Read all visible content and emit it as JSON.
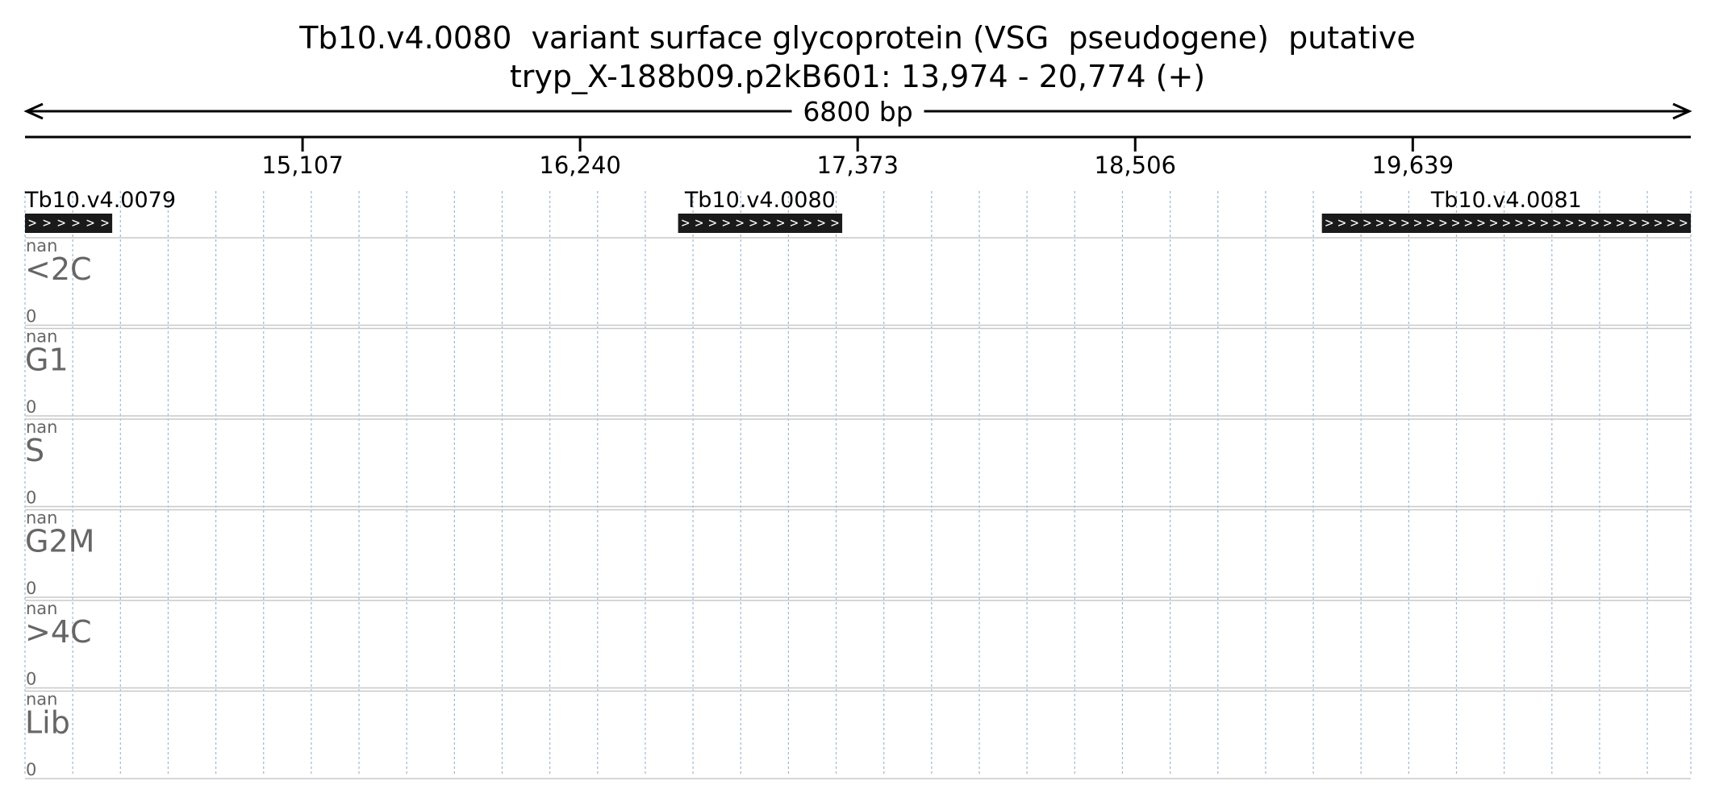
{
  "header": {
    "title_line1": "Tb10.v4.0080  variant surface glycoprotein (VSG  pseudogene)  putative",
    "title_line2": "tryp_X-188b09.p2kB601: 13,974 - 20,774 (+)"
  },
  "chart_data": {
    "type": "genome-track",
    "region": {
      "start": 13974,
      "end": 20774,
      "strand": "+"
    },
    "span_label": "6800 bp",
    "ruler": {
      "ticks": [
        {
          "value": 15107,
          "label": "15,107"
        },
        {
          "value": 16240,
          "label": "16,240"
        },
        {
          "value": 17373,
          "label": "17,373"
        },
        {
          "value": 18506,
          "label": "18,506"
        },
        {
          "value": 19639,
          "label": "19,639"
        }
      ]
    },
    "genes": [
      {
        "name": "Tb10.v4.0079",
        "start": 13974,
        "end": 14330,
        "strand": "+",
        "arrows": "> > > > > >"
      },
      {
        "name": "Tb10.v4.0080",
        "start": 16640,
        "end": 17310,
        "strand": "+",
        "arrows": "> > > > > > > > > > > >"
      },
      {
        "name": "Tb10.v4.0081",
        "start": 19268,
        "end": 20774,
        "strand": "+",
        "arrows": "> > > > > > > > > > > > > > > > > > > > > > > > > > > > >"
      }
    ],
    "tracks": [
      {
        "name": "<2C",
        "max_label": "nan",
        "min_label": "0"
      },
      {
        "name": "G1",
        "max_label": "nan",
        "min_label": "0"
      },
      {
        "name": "S",
        "max_label": "nan",
        "min_label": "0"
      },
      {
        "name": "G2M",
        "max_label": "nan",
        "min_label": "0"
      },
      {
        "name": ">4C",
        "max_label": "nan",
        "min_label": "0"
      },
      {
        "name": "Lib",
        "max_label": "nan",
        "min_label": "0"
      }
    ],
    "grid": true,
    "colors": {
      "gene_fill": "#1a1a1a",
      "gene_arrows": "#ffffff",
      "grid": "#9ab8d8",
      "track_label": "#666666",
      "track_separator": "#c8c8c8"
    }
  }
}
